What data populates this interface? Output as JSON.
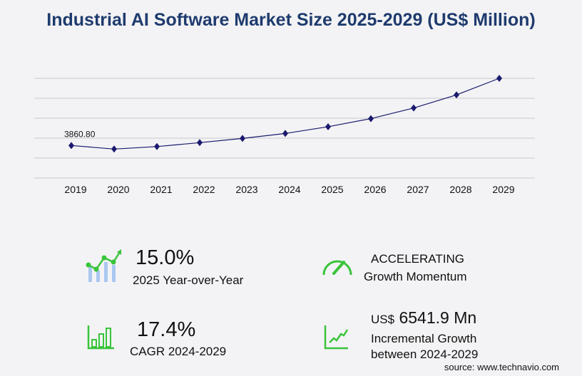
{
  "title": "Industrial AI Software Market Size 2025-2029 (US$ Million)",
  "chart_data": {
    "type": "line",
    "title": "Industrial AI Software Market Size 2025-2029 (US$ Million)",
    "categories": [
      "2019",
      "2020",
      "2021",
      "2022",
      "2023",
      "2024",
      "2025",
      "2026",
      "2027",
      "2028",
      "2029"
    ],
    "values": [
      3860.8,
      3440,
      3735,
      4200,
      4700,
      5290,
      6090,
      7050,
      8310,
      9870,
      11832
    ],
    "data_labels": {
      "0": "3860.80"
    },
    "ylim": [
      0,
      11832
    ],
    "grid": true,
    "color": "#1a1a6e"
  },
  "stats": {
    "yoy_value": "15.0%",
    "yoy_label": "2025 Year-over-Year",
    "momentum_value": "ACCELERATING",
    "momentum_label": "Growth Momentum",
    "cagr_value": "17.4%",
    "cagr_label": "CAGR 2024-2029",
    "incr_prefix": "US$",
    "incr_value": "6541.9 Mn",
    "incr_label1": "Incremental Growth",
    "incr_label2": "between 2024-2029"
  },
  "source": "source: www.technavio.com",
  "colors": {
    "accent": "#3ac43a",
    "title": "#1f3b6e",
    "bars": "#a9c8f0"
  }
}
